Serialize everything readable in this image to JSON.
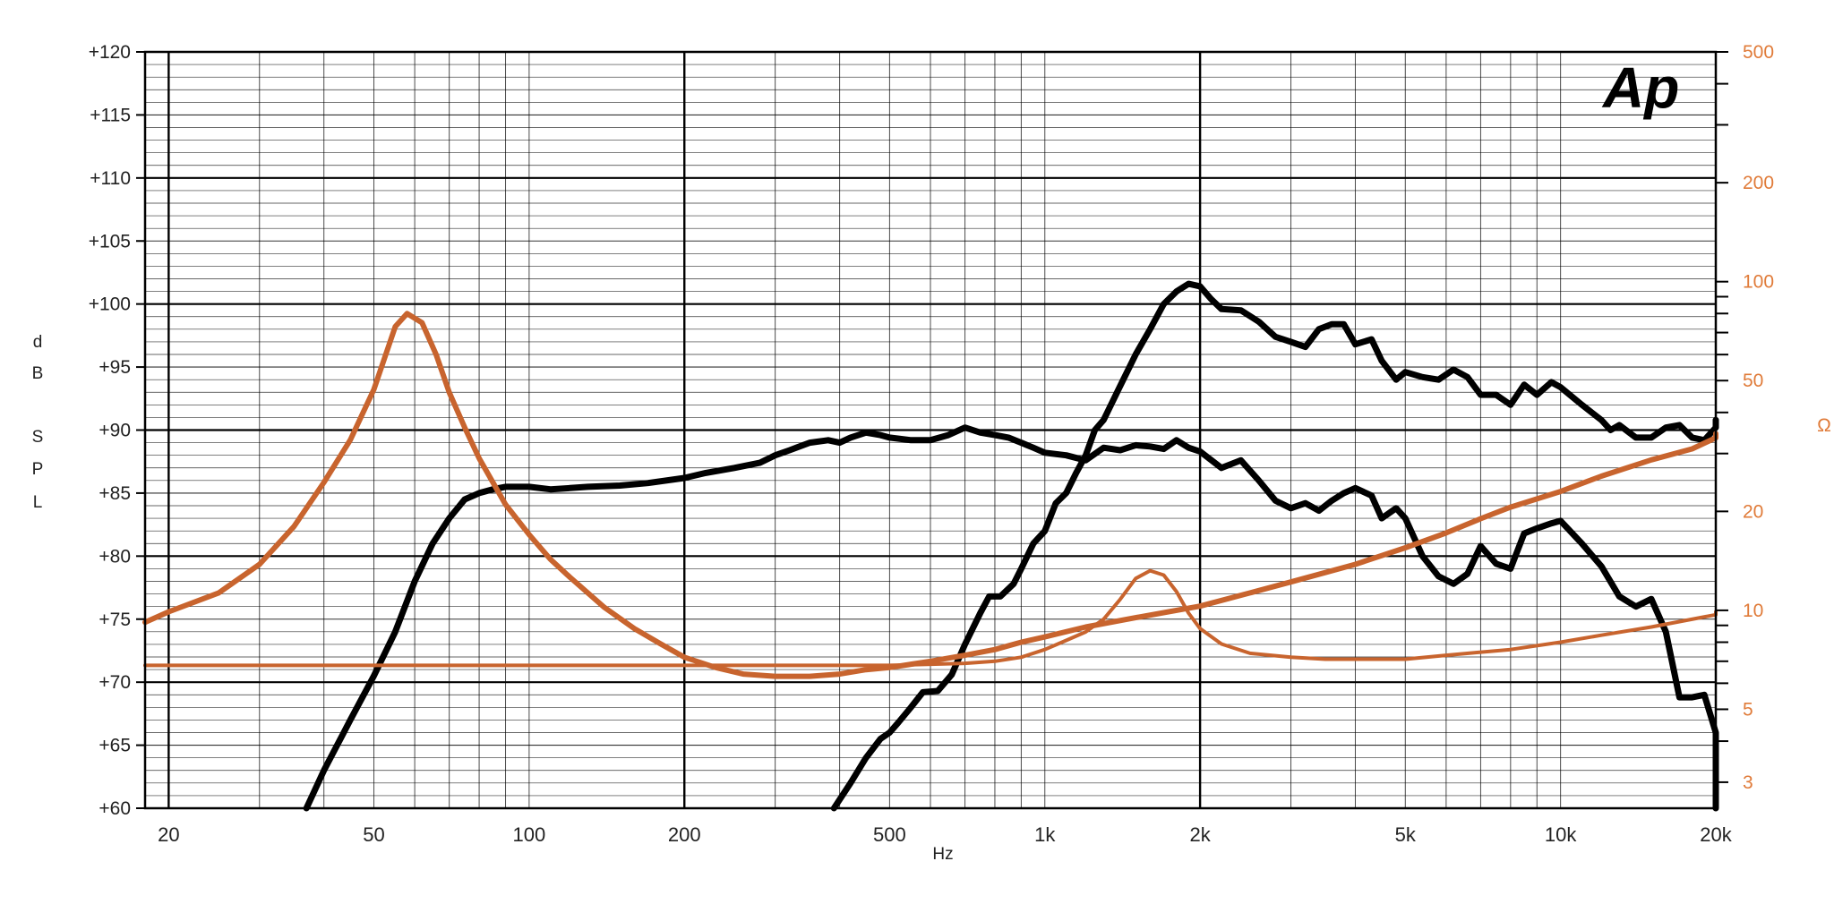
{
  "chart_data": {
    "type": "line",
    "logo": "Ap",
    "xlabel": "Hz",
    "ylabel": "dB SPL",
    "ylabel_letters": [
      "d",
      "B",
      "S",
      "P",
      "L"
    ],
    "y2label": "Ω",
    "x_scale": "log",
    "xlim": [
      18,
      20000
    ],
    "ylim": [
      60,
      120
    ],
    "y2_scale": "log",
    "y2lim": [
      2.5,
      500
    ],
    "grid": true,
    "x_ticks": [
      {
        "v": 20,
        "label": "20"
      },
      {
        "v": 50,
        "label": "50"
      },
      {
        "v": 100,
        "label": "100"
      },
      {
        "v": 200,
        "label": "200"
      },
      {
        "v": 500,
        "label": "500"
      },
      {
        "v": 1000,
        "label": "1k"
      },
      {
        "v": 2000,
        "label": "2k"
      },
      {
        "v": 5000,
        "label": "5k"
      },
      {
        "v": 10000,
        "label": "10k"
      },
      {
        "v": 20000,
        "label": "20k"
      }
    ],
    "y_ticks": [
      "+60",
      "+65",
      "+70",
      "+75",
      "+80",
      "+85",
      "+90",
      "+95",
      "+100",
      "+105",
      "+110",
      "+115",
      "+120"
    ],
    "y2_ticks": [
      {
        "v": 3,
        "label": "3"
      },
      {
        "v": 5,
        "label": "5"
      },
      {
        "v": 10,
        "label": "10"
      },
      {
        "v": 20,
        "label": "20"
      },
      {
        "v": 50,
        "label": "50"
      },
      {
        "v": 100,
        "label": "100"
      },
      {
        "v": 200,
        "label": "200"
      },
      {
        "v": 500,
        "label": "500"
      }
    ],
    "colors": {
      "spl": "#000000",
      "impedance": "#c8642e",
      "right_axis": "#e07b39",
      "grid": "#000000"
    },
    "series": [
      {
        "axis": "spl",
        "stroke": 7,
        "points": [
          [
            37,
            60
          ],
          [
            40,
            63
          ],
          [
            45,
            67
          ],
          [
            50,
            70.5
          ],
          [
            55,
            74
          ],
          [
            60,
            78
          ],
          [
            65,
            81
          ],
          [
            70,
            83
          ],
          [
            75,
            84.5
          ],
          [
            80,
            85
          ],
          [
            85,
            85.3
          ],
          [
            90,
            85.5
          ],
          [
            100,
            85.5
          ],
          [
            110,
            85.3
          ],
          [
            120,
            85.4
          ],
          [
            130,
            85.5
          ],
          [
            150,
            85.6
          ],
          [
            170,
            85.8
          ],
          [
            200,
            86.2
          ],
          [
            220,
            86.6
          ],
          [
            250,
            87
          ],
          [
            280,
            87.4
          ],
          [
            300,
            88
          ],
          [
            320,
            88.4
          ],
          [
            350,
            89
          ],
          [
            380,
            89.2
          ],
          [
            400,
            89
          ],
          [
            420,
            89.4
          ],
          [
            450,
            89.8
          ],
          [
            480,
            89.6
          ],
          [
            500,
            89.4
          ],
          [
            550,
            89.2
          ],
          [
            600,
            89.2
          ],
          [
            650,
            89.6
          ],
          [
            700,
            90.2
          ],
          [
            750,
            89.8
          ],
          [
            800,
            89.6
          ],
          [
            850,
            89.4
          ],
          [
            900,
            89
          ],
          [
            950,
            88.6
          ],
          [
            1000,
            88.2
          ],
          [
            1100,
            88
          ],
          [
            1200,
            87.6
          ],
          [
            1300,
            88.6
          ],
          [
            1400,
            88.4
          ],
          [
            1500,
            88.8
          ],
          [
            1600,
            88.7
          ],
          [
            1700,
            88.5
          ],
          [
            1800,
            89.2
          ],
          [
            1900,
            88.6
          ],
          [
            2000,
            88.3
          ],
          [
            2200,
            87
          ],
          [
            2400,
            87.6
          ],
          [
            2600,
            86
          ],
          [
            2800,
            84.4
          ],
          [
            3000,
            83.8
          ],
          [
            3200,
            84.2
          ],
          [
            3400,
            83.6
          ],
          [
            3600,
            84.4
          ],
          [
            3800,
            85
          ],
          [
            4000,
            85.4
          ],
          [
            4300,
            84.8
          ],
          [
            4500,
            83
          ],
          [
            4800,
            83.8
          ],
          [
            5000,
            83
          ],
          [
            5400,
            80
          ],
          [
            5800,
            78.4
          ],
          [
            6200,
            77.8
          ],
          [
            6600,
            78.6
          ],
          [
            7000,
            80.8
          ],
          [
            7500,
            79.4
          ],
          [
            8000,
            79
          ],
          [
            8500,
            81.8
          ],
          [
            9000,
            82.2
          ],
          [
            9600,
            82.6
          ],
          [
            10000,
            82.8
          ],
          [
            11000,
            81
          ],
          [
            12000,
            79.2
          ],
          [
            13000,
            76.8
          ],
          [
            14000,
            76
          ],
          [
            15000,
            76.6
          ],
          [
            16000,
            74
          ],
          [
            17000,
            68.8
          ],
          [
            18000,
            68.8
          ],
          [
            19000,
            69
          ],
          [
            20000,
            66
          ],
          [
            20700,
            60
          ]
        ]
      },
      {
        "axis": "spl",
        "stroke": 7,
        "points": [
          [
            390,
            60
          ],
          [
            420,
            62
          ],
          [
            450,
            64
          ],
          [
            480,
            65.5
          ],
          [
            500,
            66
          ],
          [
            520,
            66.8
          ],
          [
            550,
            68
          ],
          [
            580,
            69.2
          ],
          [
            620,
            69.3
          ],
          [
            660,
            70.6
          ],
          [
            700,
            73
          ],
          [
            750,
            75.5
          ],
          [
            780,
            76.8
          ],
          [
            820,
            76.8
          ],
          [
            870,
            77.8
          ],
          [
            900,
            79
          ],
          [
            950,
            81
          ],
          [
            1000,
            82
          ],
          [
            1050,
            84.2
          ],
          [
            1100,
            85
          ],
          [
            1150,
            86.6
          ],
          [
            1200,
            88
          ],
          [
            1250,
            90
          ],
          [
            1300,
            90.8
          ],
          [
            1400,
            93.5
          ],
          [
            1500,
            96
          ],
          [
            1600,
            98
          ],
          [
            1700,
            100
          ],
          [
            1800,
            101
          ],
          [
            1900,
            101.6
          ],
          [
            2000,
            101.4
          ],
          [
            2100,
            100.4
          ],
          [
            2200,
            99.6
          ],
          [
            2400,
            99.5
          ],
          [
            2600,
            98.6
          ],
          [
            2800,
            97.4
          ],
          [
            3000,
            97
          ],
          [
            3200,
            96.6
          ],
          [
            3400,
            98
          ],
          [
            3600,
            98.4
          ],
          [
            3800,
            98.4
          ],
          [
            4000,
            96.8
          ],
          [
            4300,
            97.2
          ],
          [
            4500,
            95.5
          ],
          [
            4800,
            94
          ],
          [
            5000,
            94.6
          ],
          [
            5400,
            94.2
          ],
          [
            5800,
            94
          ],
          [
            6200,
            94.8
          ],
          [
            6600,
            94.2
          ],
          [
            7000,
            92.8
          ],
          [
            7500,
            92.8
          ],
          [
            8000,
            92
          ],
          [
            8500,
            93.6
          ],
          [
            9000,
            92.8
          ],
          [
            9600,
            93.8
          ],
          [
            10000,
            93.4
          ],
          [
            11000,
            92
          ],
          [
            12000,
            90.8
          ],
          [
            12500,
            90
          ],
          [
            13000,
            90.4
          ],
          [
            14000,
            89.4
          ],
          [
            15000,
            89.4
          ],
          [
            16000,
            90.2
          ],
          [
            17000,
            90.4
          ],
          [
            18000,
            89.4
          ],
          [
            19000,
            89.2
          ],
          [
            20000,
            90.2
          ],
          [
            21000,
            90.8
          ],
          [
            22000,
            90.2
          ]
        ]
      },
      {
        "axis": "impedance",
        "stroke": 6,
        "points": [
          [
            18,
            9.2
          ],
          [
            20,
            9.9
          ],
          [
            25,
            11.3
          ],
          [
            30,
            13.8
          ],
          [
            35,
            18
          ],
          [
            40,
            24.5
          ],
          [
            45,
            33
          ],
          [
            50,
            47
          ],
          [
            55,
            73
          ],
          [
            58,
            80
          ],
          [
            62,
            75
          ],
          [
            66,
            60
          ],
          [
            70,
            46
          ],
          [
            75,
            36
          ],
          [
            80,
            29
          ],
          [
            90,
            21
          ],
          [
            100,
            17
          ],
          [
            110,
            14.3
          ],
          [
            120,
            12.6
          ],
          [
            140,
            10.2
          ],
          [
            160,
            8.8
          ],
          [
            180,
            7.9
          ],
          [
            200,
            7.2
          ],
          [
            230,
            6.7
          ],
          [
            260,
            6.4
          ],
          [
            300,
            6.3
          ],
          [
            350,
            6.3
          ],
          [
            400,
            6.4
          ],
          [
            450,
            6.6
          ],
          [
            500,
            6.7
          ],
          [
            600,
            7
          ],
          [
            700,
            7.3
          ],
          [
            800,
            7.6
          ],
          [
            900,
            8
          ],
          [
            1000,
            8.3
          ],
          [
            1200,
            8.9
          ],
          [
            1500,
            9.5
          ],
          [
            2000,
            10.3
          ],
          [
            2500,
            11.3
          ],
          [
            3000,
            12.2
          ],
          [
            4000,
            13.8
          ],
          [
            5000,
            15.5
          ],
          [
            6000,
            17.2
          ],
          [
            7000,
            19
          ],
          [
            8000,
            20.6
          ],
          [
            10000,
            23
          ],
          [
            12000,
            25.6
          ],
          [
            15000,
            28.7
          ],
          [
            18000,
            31
          ],
          [
            20000,
            33.5
          ],
          [
            21000,
            34.5
          ]
        ]
      },
      {
        "axis": "impedance",
        "stroke": 4,
        "points": [
          [
            18,
            6.8
          ],
          [
            50,
            6.8
          ],
          [
            100,
            6.8
          ],
          [
            200,
            6.8
          ],
          [
            300,
            6.8
          ],
          [
            500,
            6.8
          ],
          [
            700,
            6.9
          ],
          [
            800,
            7
          ],
          [
            900,
            7.2
          ],
          [
            1000,
            7.6
          ],
          [
            1100,
            8.1
          ],
          [
            1200,
            8.6
          ],
          [
            1300,
            9.4
          ],
          [
            1400,
            10.8
          ],
          [
            1500,
            12.5
          ],
          [
            1600,
            13.2
          ],
          [
            1700,
            12.8
          ],
          [
            1800,
            11.4
          ],
          [
            1900,
            9.8
          ],
          [
            2000,
            8.8
          ],
          [
            2200,
            7.9
          ],
          [
            2500,
            7.4
          ],
          [
            3000,
            7.2
          ],
          [
            3500,
            7.1
          ],
          [
            4000,
            7.1
          ],
          [
            5000,
            7.1
          ],
          [
            6000,
            7.3
          ],
          [
            8000,
            7.6
          ],
          [
            10000,
            8
          ],
          [
            12000,
            8.4
          ],
          [
            15000,
            8.9
          ],
          [
            20000,
            9.7
          ],
          [
            21000,
            9.9
          ]
        ]
      }
    ]
  }
}
